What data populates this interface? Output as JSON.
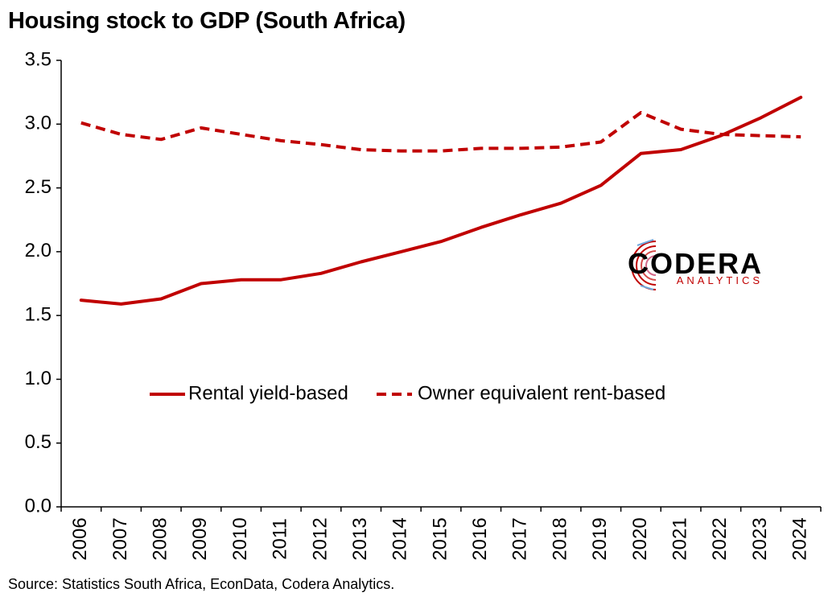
{
  "title": "Housing stock to GDP (South Africa)",
  "source": "Source: Statistics South Africa, EconData, Codera Analytics.",
  "logo": {
    "name": "CODERA",
    "subtitle": "ANALYTICS"
  },
  "colors": {
    "series": "#c00000",
    "axis": "#000000",
    "logo_text": "#000000",
    "logo_sub": "#c00000"
  },
  "chart_data": {
    "type": "line",
    "title": "Housing stock to GDP (South Africa)",
    "xlabel": "",
    "ylabel": "",
    "ylim": [
      0,
      3.5
    ],
    "y_ticks": [
      0.0,
      0.5,
      1.0,
      1.5,
      2.0,
      2.5,
      3.0,
      3.5
    ],
    "y_tick_labels": [
      "0.0",
      "0.5",
      "1.0",
      "1.5",
      "2.0",
      "2.5",
      "3.0",
      "3.5"
    ],
    "grid": false,
    "legend": "center",
    "categories": [
      "2006",
      "2007",
      "2008",
      "2009",
      "2010",
      "2011",
      "2012",
      "2013",
      "2014",
      "2015",
      "2016",
      "2017",
      "2018",
      "2019",
      "2020",
      "2021",
      "2022",
      "2023",
      "2024"
    ],
    "series": [
      {
        "name": "Rental yield-based",
        "style": "solid",
        "color": "#c00000",
        "values": [
          1.62,
          1.59,
          1.63,
          1.75,
          1.78,
          1.78,
          1.83,
          1.92,
          2.0,
          2.08,
          2.19,
          2.29,
          2.38,
          2.52,
          2.77,
          2.8,
          2.91,
          3.05,
          3.21
        ]
      },
      {
        "name": "Owner equivalent rent-based",
        "style": "dashed",
        "color": "#c00000",
        "values": [
          3.01,
          2.92,
          2.88,
          2.97,
          2.92,
          2.87,
          2.84,
          2.8,
          2.79,
          2.79,
          2.81,
          2.81,
          2.82,
          2.86,
          3.09,
          2.96,
          2.92,
          2.91,
          2.9
        ]
      }
    ]
  }
}
